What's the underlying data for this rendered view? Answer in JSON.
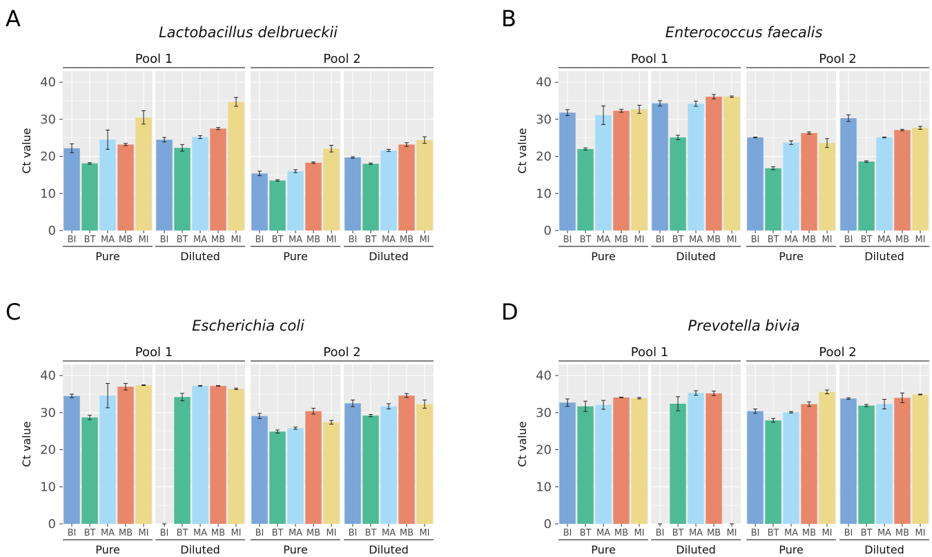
{
  "figure": {
    "colors": {
      "BI": "#7aa6d9",
      "BT": "#4dbb96",
      "MA": "#a5dbf7",
      "MB": "#e9876a",
      "MI": "#ecd98a",
      "panel_bg": "#ebebeb",
      "grid": "#ffffff"
    }
  },
  "chart_data": [
    {
      "type": "bar",
      "panel": "A",
      "title": "Lactobacillus delbrueckii",
      "ylabel": "Ct value",
      "ylim": [
        0,
        43
      ],
      "yticks": [
        0,
        10,
        20,
        30,
        40
      ],
      "categories": [
        "BI",
        "BT",
        "MA",
        "MB",
        "MI"
      ],
      "pools": [
        "Pool 1",
        "Pool 2"
      ],
      "conditions": [
        "Pure",
        "Diluted",
        "Pure",
        "Diluted"
      ],
      "facets": [
        {
          "pool": "Pool 1",
          "condition": "Pure",
          "values": [
            22.2,
            18.1,
            24.5,
            23.2,
            30.5
          ],
          "errors": [
            1.2,
            0.2,
            2.6,
            0.3,
            1.8
          ]
        },
        {
          "pool": "Pool 1",
          "condition": "Diluted",
          "values": [
            24.5,
            22.3,
            25.2,
            27.5,
            34.7
          ],
          "errors": [
            0.6,
            0.9,
            0.4,
            0.3,
            1.2
          ]
        },
        {
          "pool": "Pool 2",
          "condition": "Pure",
          "values": [
            15.4,
            13.5,
            16.0,
            18.3,
            22.1
          ],
          "errors": [
            0.6,
            0.2,
            0.4,
            0.2,
            0.9
          ]
        },
        {
          "pool": "Pool 2",
          "condition": "Diluted",
          "values": [
            19.7,
            18.0,
            21.6,
            23.2,
            24.4
          ],
          "errors": [
            0.2,
            0.2,
            0.3,
            0.5,
            0.9
          ]
        }
      ]
    },
    {
      "type": "bar",
      "panel": "B",
      "title": "Enterococcus faecalis",
      "ylabel": "Ct value",
      "ylim": [
        0,
        43
      ],
      "yticks": [
        0,
        10,
        20,
        30,
        40
      ],
      "categories": [
        "BI",
        "BT",
        "MA",
        "MB",
        "MI"
      ],
      "pools": [
        "Pool 1",
        "Pool 2"
      ],
      "conditions": [
        "Pure",
        "Diluted",
        "Pure",
        "Diluted"
      ],
      "facets": [
        {
          "pool": "Pool 1",
          "condition": "Pure",
          "values": [
            31.8,
            22.0,
            31.1,
            32.3,
            32.7
          ],
          "errors": [
            0.8,
            0.3,
            2.5,
            0.4,
            1.1
          ]
        },
        {
          "pool": "Pool 1",
          "condition": "Diluted",
          "values": [
            34.3,
            25.1,
            34.2,
            36.1,
            36.1
          ],
          "errors": [
            0.7,
            0.6,
            0.7,
            0.6,
            0.2
          ]
        },
        {
          "pool": "Pool 2",
          "condition": "Pure",
          "values": [
            25.1,
            16.8,
            23.7,
            26.3,
            23.6
          ],
          "errors": [
            0.1,
            0.4,
            0.5,
            0.3,
            1.2
          ]
        },
        {
          "pool": "Pool 2",
          "condition": "Diluted",
          "values": [
            30.3,
            18.6,
            25.1,
            27.1,
            27.7
          ],
          "errors": [
            0.9,
            0.2,
            0.1,
            0.2,
            0.4
          ]
        }
      ]
    },
    {
      "type": "bar",
      "panel": "C",
      "title": "Escherichia coli",
      "ylabel": "Ct value",
      "ylim": [
        0,
        43
      ],
      "yticks": [
        0,
        10,
        20,
        30,
        40
      ],
      "categories": [
        "BI",
        "BT",
        "MA",
        "MB",
        "MI"
      ],
      "pools": [
        "Pool 1",
        "Pool 2"
      ],
      "conditions": [
        "Pure",
        "Diluted",
        "Pure",
        "Diluted"
      ],
      "facets": [
        {
          "pool": "Pool 1",
          "condition": "Pure",
          "values": [
            34.5,
            28.7,
            34.6,
            37.0,
            37.4
          ],
          "errors": [
            0.5,
            0.6,
            3.3,
            0.9,
            0.1
          ]
        },
        {
          "pool": "Pool 1",
          "condition": "Diluted",
          "values": [
            0.0,
            34.2,
            37.2,
            37.2,
            36.4
          ],
          "errors": [
            0.0,
            1.0,
            0.1,
            0.1,
            0.2
          ]
        },
        {
          "pool": "Pool 2",
          "condition": "Pure",
          "values": [
            29.1,
            24.9,
            25.8,
            30.4,
            27.4
          ],
          "errors": [
            0.7,
            0.4,
            0.3,
            0.8,
            0.5
          ]
        },
        {
          "pool": "Pool 2",
          "condition": "Diluted",
          "values": [
            32.5,
            29.2,
            31.7,
            34.6,
            32.3
          ],
          "errors": [
            0.9,
            0.3,
            0.7,
            0.5,
            1.1
          ]
        }
      ]
    },
    {
      "type": "bar",
      "panel": "D",
      "title": "Prevotella bivia",
      "ylabel": "Ct value",
      "ylim": [
        0,
        43
      ],
      "yticks": [
        0,
        10,
        20,
        30,
        40
      ],
      "categories": [
        "BI",
        "BT",
        "MA",
        "MB",
        "MI"
      ],
      "pools": [
        "Pool 1",
        "Pool 2"
      ],
      "conditions": [
        "Pure",
        "Diluted",
        "Pure",
        "Diluted"
      ],
      "facets": [
        {
          "pool": "Pool 1",
          "condition": "Pure",
          "values": [
            32.7,
            31.7,
            32.1,
            34.1,
            33.9
          ],
          "errors": [
            1.0,
            1.4,
            1.2,
            0.1,
            0.2
          ]
        },
        {
          "pool": "Pool 1",
          "condition": "Diluted",
          "values": [
            0.0,
            32.4,
            35.3,
            35.2,
            0.0
          ],
          "errors": [
            0.0,
            1.9,
            0.6,
            0.6,
            0.0
          ]
        },
        {
          "pool": "Pool 2",
          "condition": "Pure",
          "values": [
            30.4,
            27.9,
            30.1,
            32.3,
            35.6
          ],
          "errors": [
            0.6,
            0.5,
            0.2,
            0.6,
            0.5
          ]
        },
        {
          "pool": "Pool 2",
          "condition": "Diluted",
          "values": [
            33.8,
            31.9,
            32.3,
            34.0,
            34.9
          ],
          "errors": [
            0.2,
            0.3,
            1.3,
            1.3,
            0.1
          ]
        }
      ]
    }
  ]
}
